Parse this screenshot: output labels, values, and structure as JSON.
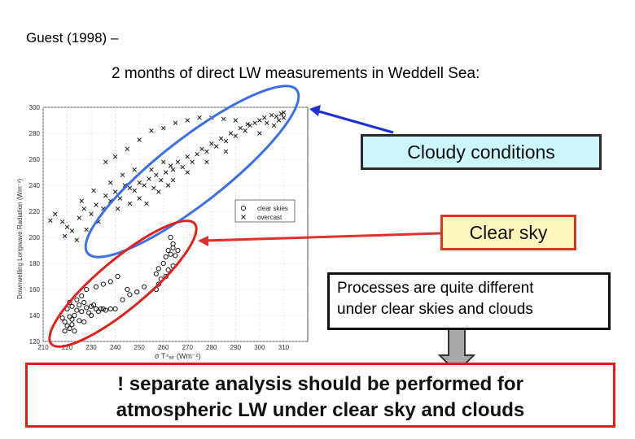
{
  "slide": {
    "title": "Guest (1998) –",
    "subtitle": "2 months of direct LW measurements in Weddell Sea:",
    "cloudy_label": "Cloudy conditions",
    "clear_label": "Clear sky",
    "processes_lines": [
      "Processes are quite different",
      "under clear skies and clouds"
    ],
    "conclusion_lines": [
      "! separate analysis should be performed for",
      "atmospheric LW under clear sky and clouds"
    ],
    "colors": {
      "cloudy_ellipse": "#3f6fe8",
      "clear_ellipse": "#e12020",
      "arrow_blue": "#1f2fd8",
      "arrow_red": "#e03030",
      "down_arrow": "#a9a9a9"
    }
  },
  "chart_data": {
    "type": "scatter",
    "ylabel": "Downwelling Longwave Radiation (Wm⁻²)",
    "xlabel": "σ T⁴ₐᵢᵣ (Wm⁻²)",
    "xlim": [
      210,
      320
    ],
    "ylim": [
      120,
      300
    ],
    "xticks": [
      210,
      220,
      230,
      240,
      250,
      260,
      270,
      280,
      290,
      300,
      310
    ],
    "yticks": [
      120,
      140,
      160,
      180,
      200,
      220,
      240,
      260,
      280,
      300
    ],
    "grid": true,
    "legend_position": "right-middle",
    "series": [
      {
        "name": "clear skies",
        "marker": "circle",
        "points": [
          [
            219,
            128
          ],
          [
            220,
            132
          ],
          [
            221,
            130
          ],
          [
            222,
            137
          ],
          [
            219,
            135
          ],
          [
            223,
            140
          ],
          [
            224,
            144
          ],
          [
            222,
            147
          ],
          [
            225,
            148
          ],
          [
            227,
            150
          ],
          [
            226,
            143
          ],
          [
            228,
            146
          ],
          [
            230,
            147
          ],
          [
            232,
            145
          ],
          [
            234,
            145
          ],
          [
            236,
            144
          ],
          [
            238,
            145
          ],
          [
            229,
            142
          ],
          [
            231,
            148
          ],
          [
            233,
            143
          ],
          [
            224,
            152
          ],
          [
            221,
            150
          ],
          [
            218,
            138
          ],
          [
            220,
            145
          ],
          [
            226,
            155
          ],
          [
            228,
            160
          ],
          [
            232,
            162
          ],
          [
            235,
            164
          ],
          [
            238,
            166
          ],
          [
            241,
            170
          ],
          [
            245,
            160
          ],
          [
            249,
            158
          ],
          [
            252,
            162
          ],
          [
            257,
            160
          ],
          [
            258,
            164
          ],
          [
            257,
            172
          ],
          [
            258,
            176
          ],
          [
            259,
            168
          ],
          [
            260,
            180
          ],
          [
            261,
            185
          ],
          [
            262,
            190
          ],
          [
            263,
            187
          ],
          [
            264,
            195
          ],
          [
            263,
            200
          ],
          [
            264,
            192
          ],
          [
            266,
            190
          ],
          [
            265,
            186
          ],
          [
            264,
            178
          ],
          [
            262,
            175
          ],
          [
            261,
            170
          ],
          [
            222,
            133
          ],
          [
            225,
            136
          ],
          [
            235,
            145
          ],
          [
            240,
            145
          ],
          [
            243,
            152
          ],
          [
            246,
            156
          ],
          [
            223,
            128
          ],
          [
            221,
            139
          ],
          [
            230,
            140
          ],
          [
            227,
            135
          ]
        ]
      },
      {
        "name": "overcast",
        "marker": "x",
        "points": [
          [
            215,
            218
          ],
          [
            218,
            212
          ],
          [
            220,
            208
          ],
          [
            222,
            205
          ],
          [
            225,
            215
          ],
          [
            227,
            222
          ],
          [
            230,
            218
          ],
          [
            232,
            225
          ],
          [
            235,
            222
          ],
          [
            236,
            232
          ],
          [
            238,
            228
          ],
          [
            240,
            235
          ],
          [
            242,
            230
          ],
          [
            244,
            240
          ],
          [
            246,
            238
          ],
          [
            248,
            236
          ],
          [
            250,
            242
          ],
          [
            252,
            240
          ],
          [
            254,
            245
          ],
          [
            256,
            238
          ],
          [
            257,
            248
          ],
          [
            259,
            244
          ],
          [
            261,
            250
          ],
          [
            263,
            255
          ],
          [
            264,
            252
          ],
          [
            266,
            258
          ],
          [
            268,
            254
          ],
          [
            270,
            262
          ],
          [
            272,
            258
          ],
          [
            274,
            264
          ],
          [
            276,
            268
          ],
          [
            278,
            266
          ],
          [
            280,
            272
          ],
          [
            282,
            270
          ],
          [
            284,
            276
          ],
          [
            286,
            274
          ],
          [
            288,
            280
          ],
          [
            290,
            278
          ],
          [
            292,
            284
          ],
          [
            294,
            282
          ],
          [
            296,
            286
          ],
          [
            298,
            288
          ],
          [
            300,
            290
          ],
          [
            302,
            292
          ],
          [
            303,
            288
          ],
          [
            305,
            294
          ],
          [
            307,
            293
          ],
          [
            308,
            290
          ],
          [
            309,
            295
          ],
          [
            310,
            292
          ],
          [
            236,
            258
          ],
          [
            240,
            262
          ],
          [
            245,
            268
          ],
          [
            250,
            275
          ],
          [
            255,
            282
          ],
          [
            260,
            284
          ],
          [
            265,
            288
          ],
          [
            270,
            290
          ],
          [
            275,
            292
          ],
          [
            280,
            292
          ],
          [
            285,
            291
          ],
          [
            290,
            290
          ],
          [
            295,
            287
          ],
          [
            255,
            252
          ],
          [
            260,
            258
          ],
          [
            262,
            240
          ],
          [
            250,
            230
          ],
          [
            246,
            226
          ],
          [
            241,
            222
          ],
          [
            233,
            212
          ],
          [
            228,
            206
          ],
          [
            224,
            198
          ],
          [
            219,
            201
          ],
          [
            213,
            213
          ],
          [
            226,
            228
          ],
          [
            231,
            236
          ],
          [
            238,
            242
          ],
          [
            243,
            248
          ],
          [
            248,
            252
          ],
          [
            253,
            226
          ],
          [
            258,
            235
          ],
          [
            264,
            244
          ],
          [
            270,
            250
          ],
          [
            278,
            258
          ],
          [
            286,
            266
          ],
          [
            300,
            280
          ],
          [
            306,
            286
          ],
          [
            310,
            296
          ]
        ]
      }
    ]
  }
}
